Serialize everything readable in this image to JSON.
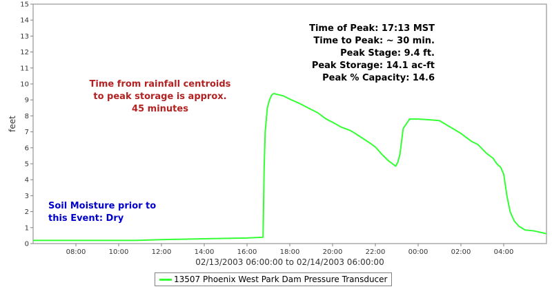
{
  "chart_data": {
    "type": "line",
    "title": "",
    "xlabel": "02/13/2003 06:00:00 to 02/14/2003 06:00:00",
    "ylabel": "feet",
    "ylim": [
      0,
      15
    ],
    "xlim": [
      6.0,
      30.0
    ],
    "yticks": [
      0,
      1,
      2,
      3,
      4,
      5,
      6,
      7,
      8,
      9,
      10,
      11,
      12,
      13,
      14,
      15
    ],
    "xticks": [
      {
        "x": 8,
        "label": "08:00"
      },
      {
        "x": 10,
        "label": "10:00"
      },
      {
        "x": 12,
        "label": "12:00"
      },
      {
        "x": 14,
        "label": "14:00"
      },
      {
        "x": 16,
        "label": "16:00"
      },
      {
        "x": 18,
        "label": "18:00"
      },
      {
        "x": 20,
        "label": "20:00"
      },
      {
        "x": 22,
        "label": "22:00"
      },
      {
        "x": 24,
        "label": "00:00"
      },
      {
        "x": 26,
        "label": "02:00"
      },
      {
        "x": 28,
        "label": "04:00"
      }
    ],
    "grid": false,
    "legend_placement": "bottom-center",
    "series": [
      {
        "name": "13507 Phoenix West Park Dam Pressure Transducer",
        "color": "#33ff33",
        "x": [
          6.0,
          10.8,
          12.0,
          14.0,
          16.0,
          16.75,
          16.8,
          16.85,
          16.95,
          17.05,
          17.15,
          17.25,
          17.4,
          17.7,
          18.0,
          18.5,
          19.0,
          19.3,
          19.7,
          20.0,
          20.4,
          20.8,
          21.0,
          21.4,
          21.8,
          22.0,
          22.3,
          22.6,
          22.75,
          22.85,
          22.95,
          23.05,
          23.15,
          23.3,
          23.6,
          24.0,
          24.6,
          25.0,
          25.5,
          26.0,
          26.5,
          26.8,
          27.2,
          27.5,
          27.65,
          27.75,
          27.85,
          28.0,
          28.15,
          28.3,
          28.5,
          28.7,
          29.0,
          29.4,
          30.0
        ],
        "y": [
          0.2,
          0.2,
          0.25,
          0.3,
          0.35,
          0.4,
          4.7,
          7.0,
          8.5,
          9.0,
          9.3,
          9.4,
          9.35,
          9.25,
          9.05,
          8.75,
          8.4,
          8.2,
          7.8,
          7.6,
          7.3,
          7.1,
          6.95,
          6.6,
          6.25,
          6.05,
          5.6,
          5.2,
          5.05,
          4.95,
          4.85,
          5.1,
          5.6,
          7.2,
          7.8,
          7.8,
          7.75,
          7.7,
          7.3,
          6.9,
          6.4,
          6.2,
          5.65,
          5.35,
          5.05,
          4.9,
          4.8,
          4.35,
          3.0,
          2.0,
          1.4,
          1.1,
          0.85,
          0.8,
          0.62
        ]
      }
    ],
    "annotations": {
      "peak_info": [
        "Time of Peak: 17:13 MST",
        "Time to Peak: ~ 30 min.",
        "Peak Stage: 9.4 ft.",
        "Peak Storage: 14.1 ac-ft",
        "Peak % Capacity: 14.6"
      ],
      "centroid_note": [
        "Time from rainfall centroids",
        "to peak storage is approx.",
        "45 minutes"
      ],
      "soil_note": [
        "Soil Moisture prior to",
        "this Event: Dry"
      ],
      "colors": {
        "peak_info": "#000000",
        "centroid_note": "#b22222",
        "soil_note": "#0000cc"
      }
    }
  }
}
